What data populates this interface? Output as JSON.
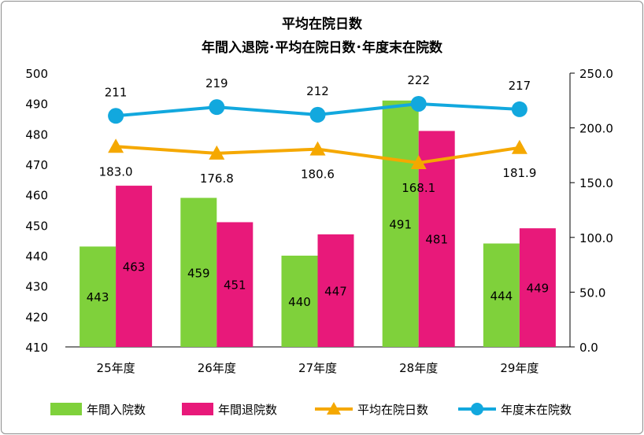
{
  "chart_data": {
    "type": "bar",
    "title": "平均在院日数",
    "subtitle": "年間入退院･平均在院日数･年度末在院数",
    "categories": [
      "25年度",
      "26年度",
      "27年度",
      "28年度",
      "29年度"
    ],
    "ylim": [
      410,
      500
    ],
    "y2lim": [
      0,
      250
    ],
    "y_ticks": [
      "410",
      "420",
      "430",
      "440",
      "450",
      "460",
      "470",
      "480",
      "490",
      "500"
    ],
    "y2_ticks": [
      "0.0",
      "50.0",
      "100.0",
      "150.0",
      "200.0",
      "250.0"
    ],
    "series": [
      {
        "name": "年間入院数",
        "kind": "bar",
        "axis": "left",
        "color": "#7fd13b",
        "values": [
          443,
          459,
          440,
          491,
          444
        ],
        "labels": [
          "443",
          "459",
          "440",
          "491",
          "444"
        ]
      },
      {
        "name": "年間退院数",
        "kind": "bar",
        "axis": "left",
        "color": "#e8197a",
        "values": [
          463,
          451,
          447,
          481,
          449
        ],
        "labels": [
          "463",
          "451",
          "447",
          "481",
          "449"
        ]
      },
      {
        "name": "平均在院日数",
        "kind": "line",
        "marker": "triangle",
        "axis": "right",
        "color": "#f5a800",
        "values": [
          183.0,
          176.8,
          180.6,
          168.1,
          181.9
        ],
        "labels": [
          "183.0",
          "176.8",
          "180.6",
          "168.1",
          "181.9"
        ]
      },
      {
        "name": "年度末在院数",
        "kind": "line",
        "marker": "circle",
        "axis": "right",
        "color": "#12a8de",
        "values": [
          211,
          219,
          212,
          222,
          217
        ],
        "labels": [
          "211",
          "219",
          "212",
          "222",
          "217"
        ]
      }
    ],
    "grid": false,
    "legend_position": "bottom"
  }
}
